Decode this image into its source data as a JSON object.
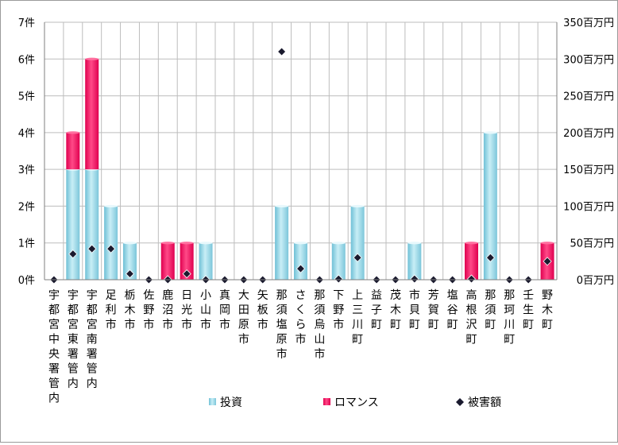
{
  "chart_data": {
    "type": "bar",
    "stacked": true,
    "categories": [
      "宇都宮中央署管内",
      "宇都宮東署管内",
      "宇都宮南署管内",
      "足利市",
      "栃木市",
      "佐野市",
      "鹿沼市",
      "日光市",
      "小山市",
      "真岡市",
      "大田原市",
      "矢板市",
      "那須塩原市",
      "さくら市",
      "那須烏山市",
      "下野市",
      "上三川町",
      "益子町",
      "茂木町",
      "市貝町",
      "芳賀町",
      "塩谷町",
      "高根沢町",
      "那須町",
      "那珂川町",
      "壬生町",
      "野木町"
    ],
    "series": [
      {
        "name": "投資",
        "axis": "left",
        "color": "#8fd3e3",
        "values": [
          0,
          3,
          3,
          2,
          1,
          0,
          0,
          0,
          1,
          0,
          0,
          0,
          2,
          1,
          0,
          1,
          2,
          0,
          0,
          1,
          0,
          0,
          0,
          4,
          0,
          0,
          0
        ]
      },
      {
        "name": "ロマンス",
        "axis": "left",
        "color": "#e6155f",
        "values": [
          0,
          1,
          3,
          0,
          0,
          0,
          1,
          1,
          0,
          0,
          0,
          0,
          0,
          0,
          0,
          0,
          0,
          0,
          0,
          0,
          0,
          0,
          1,
          0,
          0,
          0,
          1
        ]
      },
      {
        "name": "被害額",
        "axis": "right",
        "marker": "diamond",
        "color": "#1a1a2e",
        "values": [
          0,
          35,
          42,
          42,
          8,
          0,
          0,
          8,
          0,
          0,
          0,
          0,
          310,
          15,
          0,
          1,
          30,
          0,
          0,
          1,
          0,
          0,
          1,
          30,
          0,
          0,
          25
        ]
      }
    ],
    "y_left": {
      "min": 0,
      "max": 7,
      "step": 1,
      "suffix": "件"
    },
    "y_right": {
      "min": 0,
      "max": 350,
      "step": 50,
      "suffix": "百万円"
    },
    "grid": true,
    "legend": {
      "position": "bottom",
      "entries": [
        "投資",
        "ロマンス",
        "被害額"
      ]
    }
  }
}
